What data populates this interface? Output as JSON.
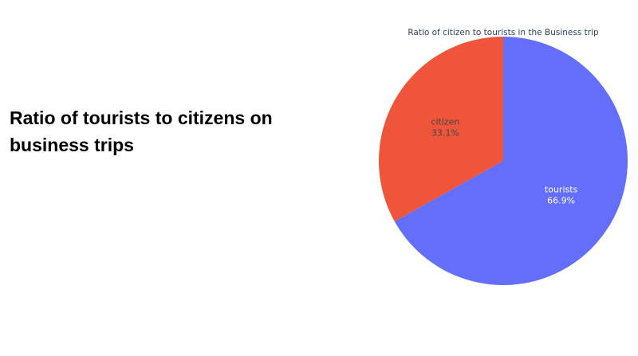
{
  "slide": {
    "title": "Ratio of tourists to citizens on business trips"
  },
  "chart_data": {
    "type": "pie",
    "title": "Ratio of citizen to tourists in the Business trip",
    "labels": [
      "tourists",
      "citizen"
    ],
    "values": [
      66.9,
      33.1
    ],
    "value_format": "percent",
    "colors": [
      "#636efa",
      "#ef553b"
    ],
    "label_colors": [
      "#ffffff",
      "#444444"
    ]
  }
}
